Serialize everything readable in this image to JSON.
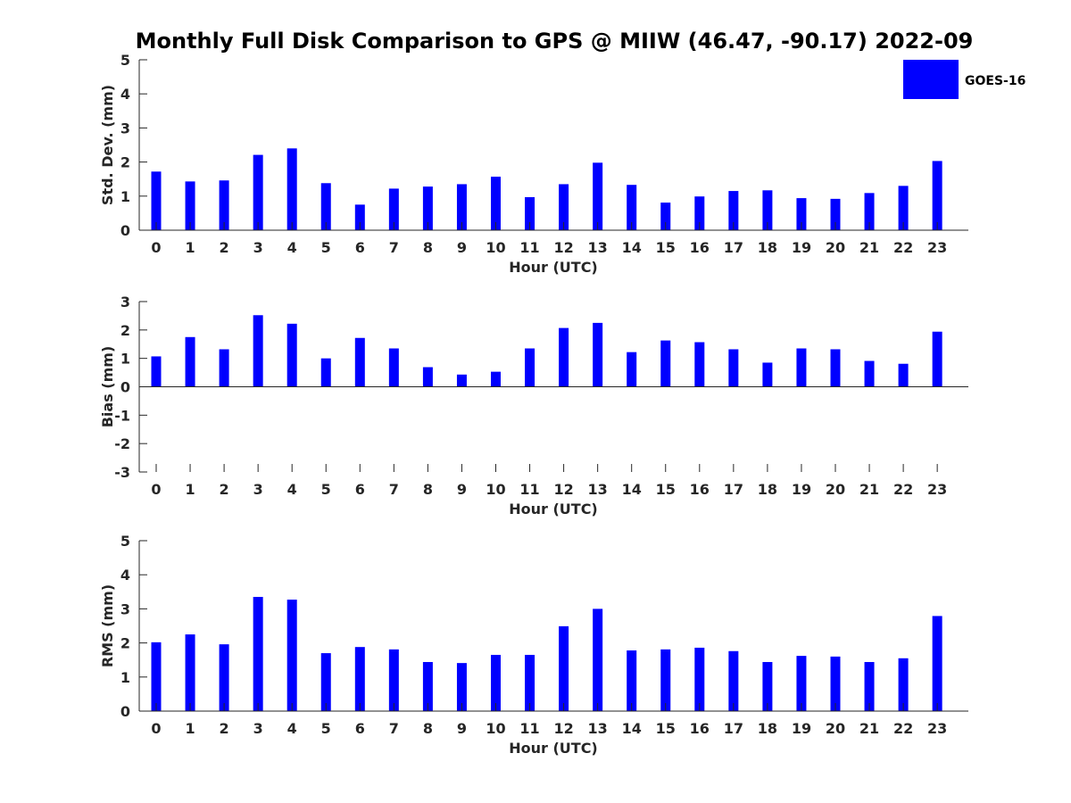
{
  "figure": {
    "title": "Monthly Full Disk Comparison to GPS @ MIIW (46.47, -90.17) 2022-09"
  },
  "legend": {
    "label": "GOES-16",
    "color": "#0000ff",
    "placement": "top-right"
  },
  "chart_data": [
    {
      "type": "bar",
      "id": "std",
      "xlabel": "Hour (UTC)",
      "ylabel": "Std. Dev. (mm)",
      "ylim": [
        0,
        5
      ],
      "yticks": [
        "0",
        "1",
        "2",
        "3",
        "4",
        "5"
      ],
      "categories": [
        "0",
        "1",
        "2",
        "3",
        "4",
        "5",
        "6",
        "7",
        "8",
        "9",
        "10",
        "11",
        "12",
        "13",
        "14",
        "15",
        "16",
        "17",
        "18",
        "19",
        "20",
        "21",
        "22",
        "23"
      ],
      "series": [
        {
          "name": "GOES-16",
          "values": [
            1.72,
            1.43,
            1.46,
            2.21,
            2.4,
            1.38,
            0.75,
            1.22,
            1.28,
            1.35,
            1.57,
            0.97,
            1.35,
            1.98,
            1.33,
            0.81,
            0.99,
            1.15,
            1.17,
            0.94,
            0.92,
            1.09,
            1.3,
            2.03
          ]
        }
      ]
    },
    {
      "type": "bar",
      "id": "bias",
      "xlabel": "Hour (UTC)",
      "ylabel": "Bias (mm)",
      "ylim": [
        -3,
        3
      ],
      "yticks": [
        "-3",
        "-2",
        "-1",
        "0",
        "1",
        "2",
        "3"
      ],
      "categories": [
        "0",
        "1",
        "2",
        "3",
        "4",
        "5",
        "6",
        "7",
        "8",
        "9",
        "10",
        "11",
        "12",
        "13",
        "14",
        "15",
        "16",
        "17",
        "18",
        "19",
        "20",
        "21",
        "22",
        "23"
      ],
      "series": [
        {
          "name": "GOES-16",
          "values": [
            1.07,
            1.75,
            1.32,
            2.52,
            2.22,
            1.0,
            1.72,
            1.35,
            0.69,
            0.43,
            0.53,
            1.35,
            2.07,
            2.25,
            1.22,
            1.63,
            1.57,
            1.32,
            0.85,
            1.35,
            1.32,
            0.91,
            0.81,
            1.94
          ]
        }
      ]
    },
    {
      "type": "bar",
      "id": "rms",
      "xlabel": "Hour (UTC)",
      "ylabel": "RMS (mm)",
      "ylim": [
        0,
        5
      ],
      "yticks": [
        "0",
        "1",
        "2",
        "3",
        "4",
        "5"
      ],
      "categories": [
        "0",
        "1",
        "2",
        "3",
        "4",
        "5",
        "6",
        "7",
        "8",
        "9",
        "10",
        "11",
        "12",
        "13",
        "14",
        "15",
        "16",
        "17",
        "18",
        "19",
        "20",
        "21",
        "22",
        "23"
      ],
      "series": [
        {
          "name": "GOES-16",
          "values": [
            2.02,
            2.25,
            1.96,
            3.35,
            3.27,
            1.7,
            1.88,
            1.81,
            1.44,
            1.41,
            1.65,
            1.65,
            2.49,
            3.0,
            1.78,
            1.81,
            1.86,
            1.76,
            1.44,
            1.62,
            1.6,
            1.44,
            1.55,
            2.79
          ]
        }
      ]
    }
  ]
}
